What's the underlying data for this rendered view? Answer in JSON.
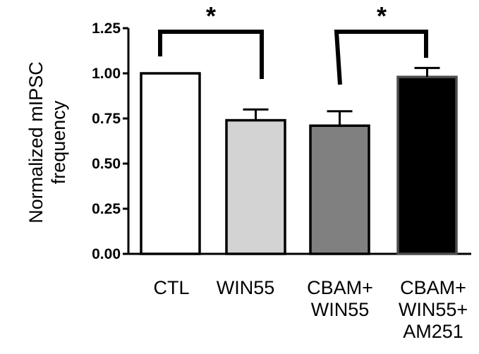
{
  "chart_data": {
    "type": "bar",
    "ylabel_lines": [
      "Normalized mIPSC",
      "frequency"
    ],
    "ylim": [
      0,
      1.25
    ],
    "yticks": [
      "0.00",
      "0.25",
      "0.50",
      "0.75",
      "1.00",
      "1.25"
    ],
    "categories": [
      [
        "CTL"
      ],
      [
        "WIN55"
      ],
      [
        "CBAM+",
        "WIN55"
      ],
      [
        "CBAM+",
        "WIN55+",
        "AM251"
      ]
    ],
    "values": [
      1.0,
      0.74,
      0.71,
      0.98
    ],
    "errors": [
      0,
      0.06,
      0.08,
      0.05
    ],
    "fills": [
      "#ffffff",
      "#d3d3d3",
      "#808080",
      "#000000"
    ],
    "significance": [
      {
        "from": 0,
        "to": 1,
        "label": "*"
      },
      {
        "from": 2,
        "to": 3,
        "label": "*"
      }
    ],
    "grid": false,
    "legend": "none"
  }
}
